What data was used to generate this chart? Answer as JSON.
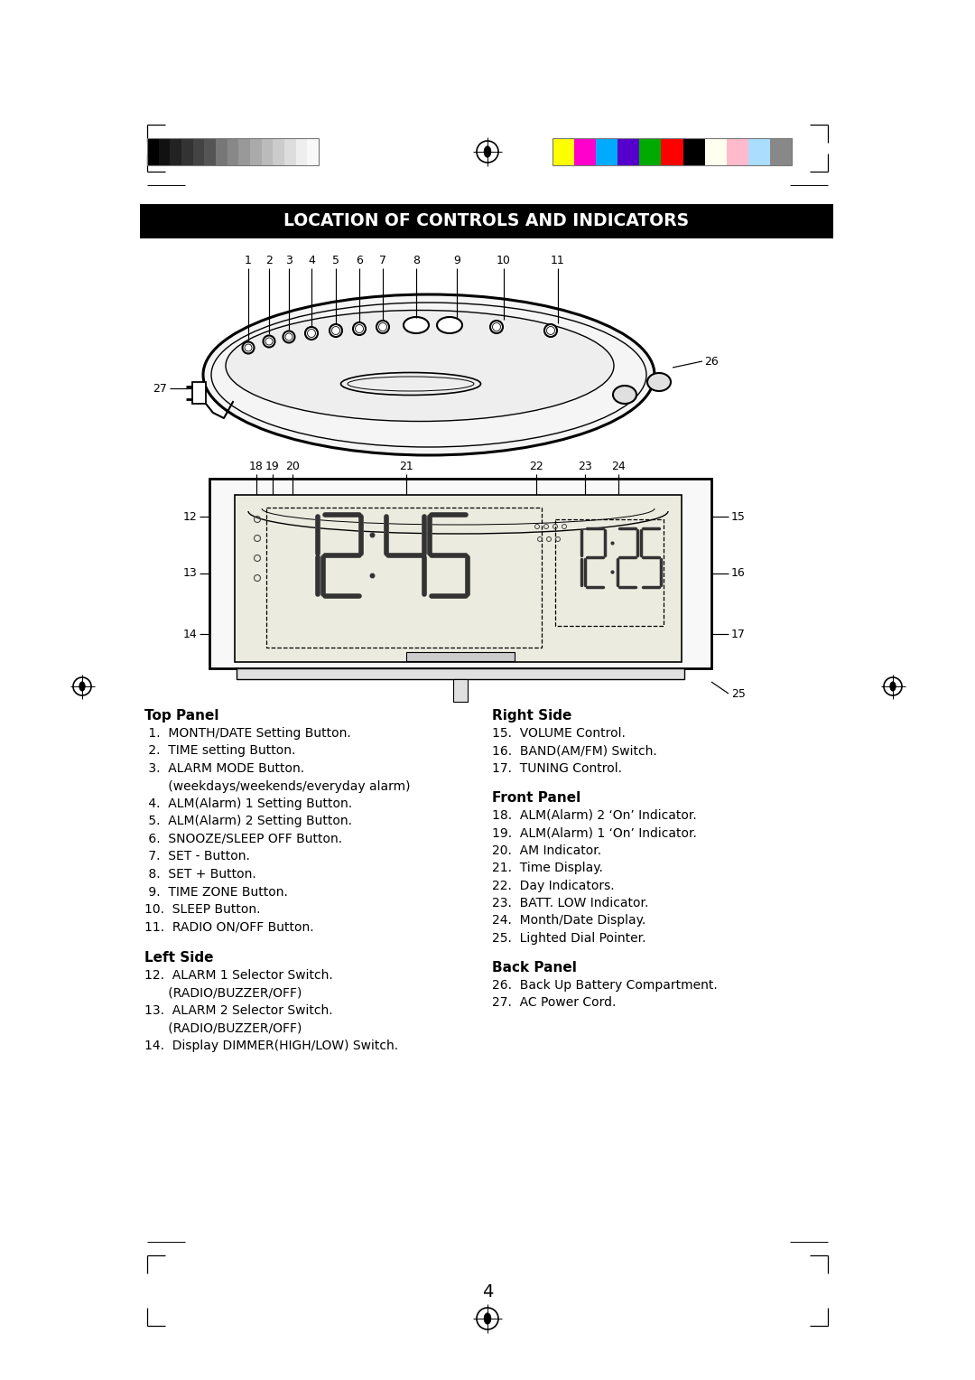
{
  "title": "LOCATION OF CONTROLS AND INDICATORS",
  "title_bg": "#000000",
  "title_fg": "#ffffff",
  "bg_color": "#ffffff",
  "page_number": "4",
  "top_panel_label": "Top Panel",
  "top_panel_items": [
    " 1.  MONTH/DATE Setting Button.",
    " 2.  TIME setting Button.",
    " 3.  ALARM MODE Button.",
    "      (weekdays/weekends/everyday alarm)",
    " 4.  ALM(Alarm) 1 Setting Button.",
    " 5.  ALM(Alarm) 2 Setting Button.",
    " 6.  SNOOZE/SLEEP OFF Button.",
    " 7.  SET - Button.",
    " 8.  SET + Button.",
    " 9.  TIME ZONE Button.",
    "10.  SLEEP Button.",
    "11.  RADIO ON/OFF Button."
  ],
  "left_side_label": "Left Side",
  "left_side_items": [
    "12.  ALARM 1 Selector Switch.",
    "      (RADIO/BUZZER/OFF)",
    "13.  ALARM 2 Selector Switch.",
    "      (RADIO/BUZZER/OFF)",
    "14.  Display DIMMER(HIGH/LOW) Switch."
  ],
  "right_side_label": "Right Side",
  "right_side_items": [
    "15.  VOLUME Control.",
    "16.  BAND(AM/FM) Switch.",
    "17.  TUNING Control."
  ],
  "front_panel_label": "Front Panel",
  "front_panel_items": [
    "18.  ALM(Alarm) 2 ‘On’ Indicator.",
    "19.  ALM(Alarm) 1 ‘On’ Indicator.",
    "20.  AM Indicator.",
    "21.  Time Display.",
    "22.  Day Indicators.",
    "23.  BATT. LOW Indicator.",
    "24.  Month/Date Display.",
    "25.  Lighted Dial Pointer."
  ],
  "back_panel_label": "Back Panel",
  "back_panel_items": [
    "26.  Back Up Battery Compartment.",
    "27.  AC Power Cord."
  ],
  "grayscale_colors": [
    "#000000",
    "#111111",
    "#222222",
    "#333333",
    "#444444",
    "#555555",
    "#777777",
    "#888888",
    "#999999",
    "#aaaaaa",
    "#bbbbbb",
    "#cccccc",
    "#dddddd",
    "#eeeeee",
    "#f8f8f8"
  ],
  "color_bars": [
    "#ffff00",
    "#ff00cc",
    "#00aaff",
    "#5500cc",
    "#00aa00",
    "#ff0000",
    "#000000",
    "#fffff0",
    "#ffbbcc",
    "#aaddff",
    "#888888"
  ],
  "crosshair_color": "#000000"
}
